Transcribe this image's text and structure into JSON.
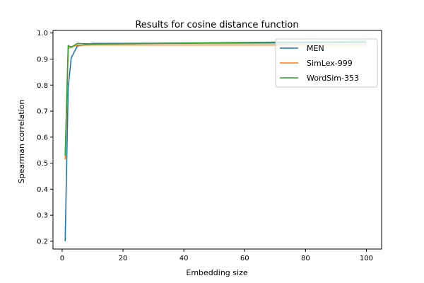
{
  "chart_data": {
    "type": "line",
    "title": "Results for cosine distance function",
    "xlabel": "Embedding size",
    "ylabel": "Spearman correlation",
    "xlim": [
      -3,
      105
    ],
    "ylim": [
      0.17,
      1.01
    ],
    "xticks": [
      0,
      20,
      40,
      60,
      80,
      100
    ],
    "yticks": [
      0.2,
      0.3,
      0.4,
      0.5,
      0.6,
      0.7,
      0.8,
      0.9,
      1.0
    ],
    "xtick_labels": [
      "0",
      "20",
      "40",
      "60",
      "80",
      "100"
    ],
    "ytick_labels": [
      "0.2",
      "0.3",
      "0.4",
      "0.5",
      "0.6",
      "0.7",
      "0.8",
      "0.9",
      "1.0"
    ],
    "grid": false,
    "legend_position": "top-right",
    "series": [
      {
        "name": "MEN",
        "color": "#1f77b4",
        "x": [
          1,
          2,
          3,
          5,
          10,
          100
        ],
        "y": [
          0.2,
          0.79,
          0.905,
          0.95,
          0.96,
          0.963
        ]
      },
      {
        "name": "SimLex-999",
        "color": "#ff7f0e",
        "x": [
          1,
          2,
          3,
          5,
          10,
          100
        ],
        "y": [
          0.515,
          0.94,
          0.948,
          0.953,
          0.954,
          0.954
        ]
      },
      {
        "name": "WordSim-353",
        "color": "#2ca02c",
        "x": [
          1,
          2,
          3,
          5,
          10,
          100
        ],
        "y": [
          0.53,
          0.952,
          0.945,
          0.96,
          0.958,
          0.968
        ]
      }
    ]
  }
}
